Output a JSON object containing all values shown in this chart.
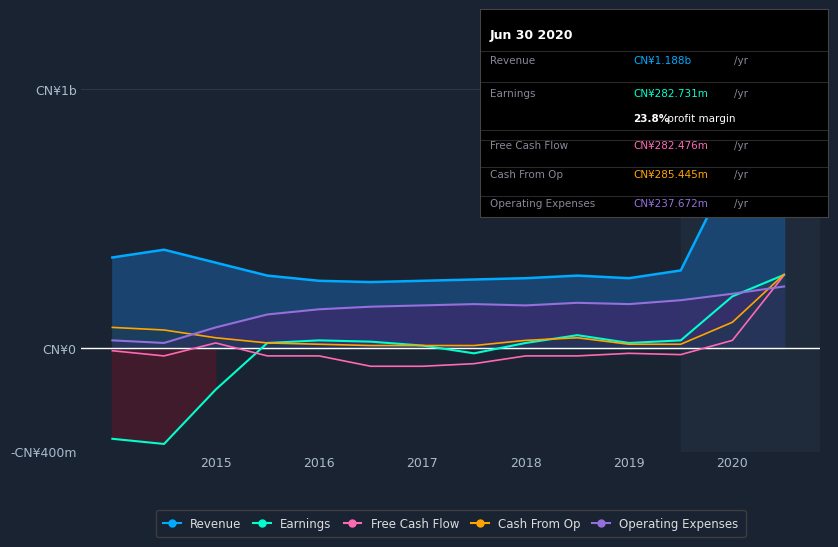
{
  "background_color": "#1a2332",
  "plot_bg_color": "#1a2332",
  "grid_color": "#2a3a4a",
  "zero_line_color": "#ffffff",
  "years": [
    2014.0,
    2014.5,
    2015.0,
    2015.5,
    2016.0,
    2016.5,
    2017.0,
    2017.5,
    2018.0,
    2018.5,
    2019.0,
    2019.5,
    2020.0,
    2020.5
  ],
  "revenue": [
    350,
    380,
    330,
    280,
    260,
    255,
    260,
    265,
    270,
    280,
    270,
    300,
    700,
    1188
  ],
  "earnings": [
    -350,
    -370,
    -160,
    20,
    30,
    25,
    10,
    -20,
    20,
    50,
    20,
    30,
    200,
    283
  ],
  "free_cash_flow": [
    -10,
    -30,
    20,
    -30,
    -30,
    -70,
    -70,
    -60,
    -30,
    -30,
    -20,
    -25,
    30,
    282
  ],
  "cash_from_op": [
    80,
    70,
    40,
    20,
    15,
    10,
    10,
    10,
    30,
    40,
    15,
    15,
    100,
    285
  ],
  "op_expenses": [
    30,
    20,
    80,
    130,
    150,
    160,
    165,
    170,
    165,
    175,
    170,
    185,
    210,
    238
  ],
  "revenue_color": "#00aaff",
  "earnings_color": "#00ffcc",
  "free_cash_flow_color": "#ff69b4",
  "cash_from_op_color": "#ffa500",
  "op_expenses_color": "#9370db",
  "revenue_fill": "#1a4a7a",
  "op_expenses_fill": "#3d2a6d",
  "ylabel_1b": "CN¥1b",
  "ylabel_0": "CN¥0",
  "ylabel_neg400": "-CN¥400m",
  "tooltip_title": "Jun 30 2020",
  "legend_items": [
    {
      "label": "Revenue",
      "color": "#00aaff"
    },
    {
      "label": "Earnings",
      "color": "#00ffcc"
    },
    {
      "label": "Free Cash Flow",
      "color": "#ff69b4"
    },
    {
      "label": "Cash From Op",
      "color": "#ffa500"
    },
    {
      "label": "Operating Expenses",
      "color": "#9370db"
    }
  ],
  "xtick_positions": [
    2015,
    2016,
    2017,
    2018,
    2019,
    2020
  ],
  "xtick_labels": [
    "2015",
    "2016",
    "2017",
    "2018",
    "2019",
    "2020"
  ],
  "highlight_x_start": 2019.5,
  "ylim_min": -400,
  "ylim_max": 1200
}
